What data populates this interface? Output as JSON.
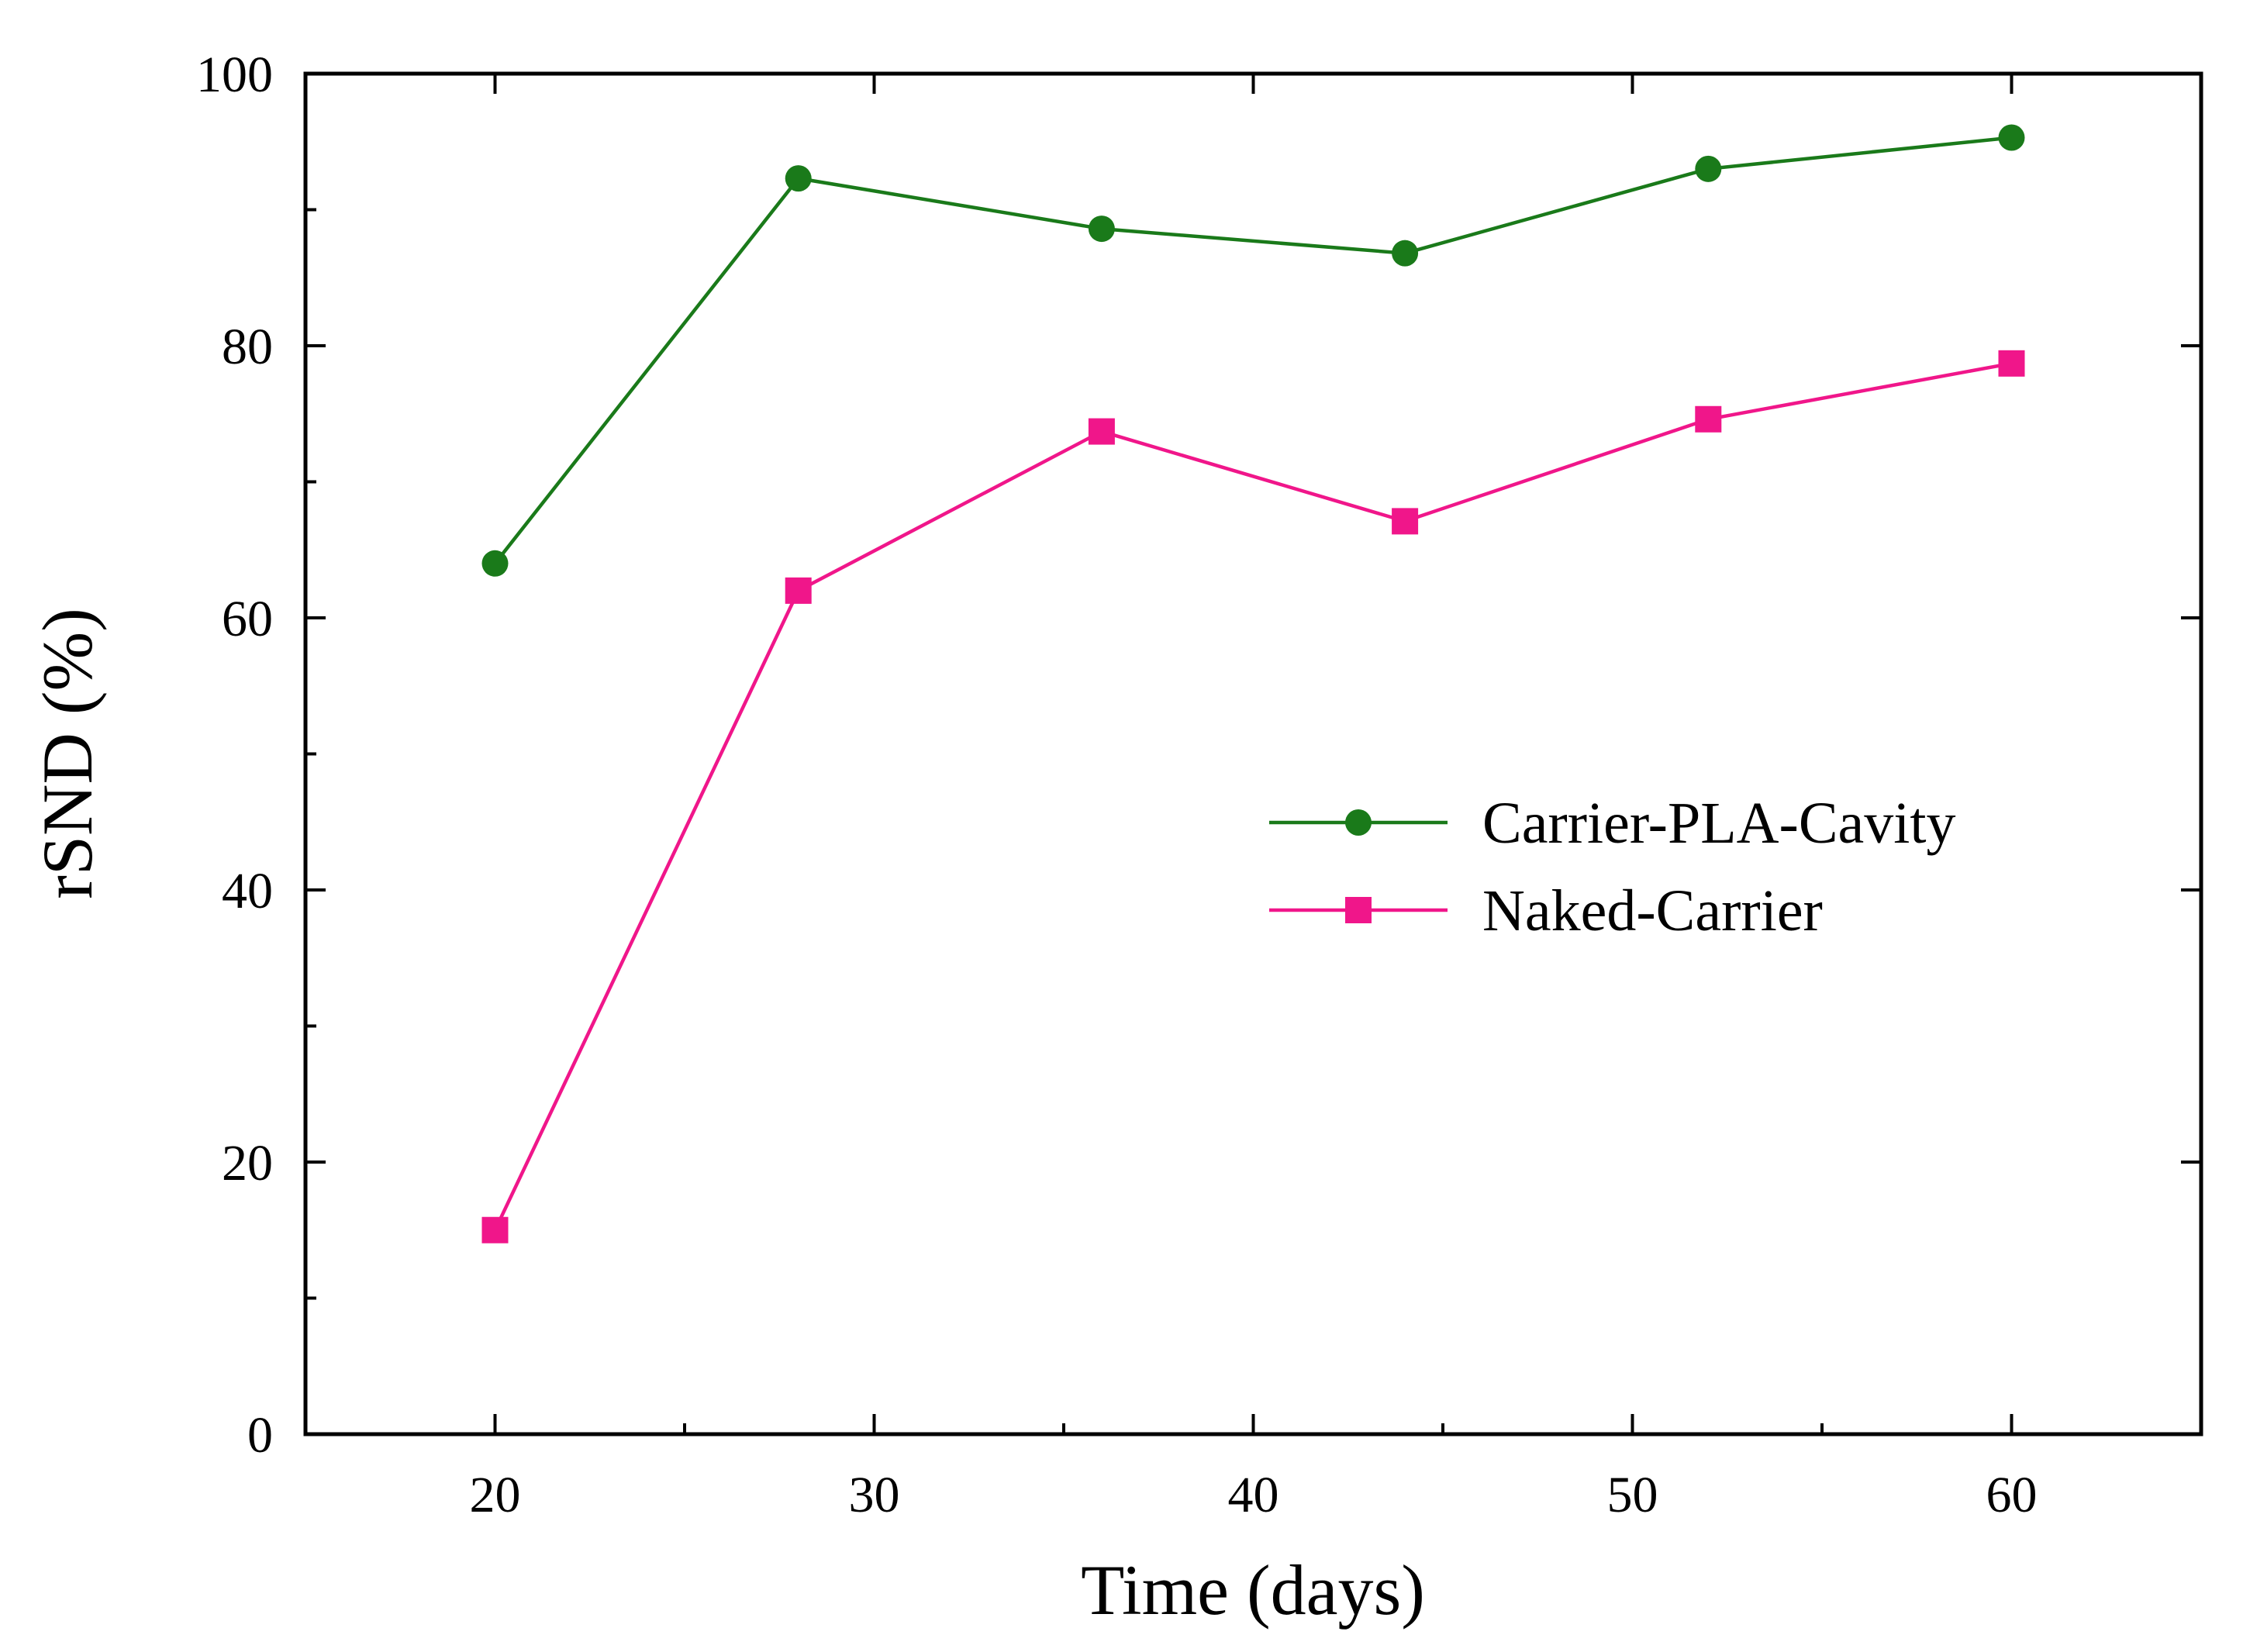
{
  "chart_data": {
    "type": "line",
    "title": "",
    "xlabel": "Time (days)",
    "ylabel": "rSND (%)",
    "xlim": [
      15,
      65
    ],
    "ylim": [
      0,
      100
    ],
    "x_ticks": [
      20,
      30,
      40,
      50,
      60
    ],
    "x_tick_labels": [
      "20",
      "30",
      "40",
      "50",
      "60"
    ],
    "x_minor_ticks": [
      25,
      35,
      45,
      55
    ],
    "y_ticks": [
      0,
      20,
      40,
      60,
      80,
      100
    ],
    "y_tick_labels": [
      "0",
      "20",
      "40",
      "60",
      "80",
      "100"
    ],
    "y_minor_ticks": [
      10,
      30,
      50,
      70,
      90
    ],
    "grid": false,
    "legend_position": "center-right",
    "x": [
      20,
      28,
      36,
      44,
      52,
      60
    ],
    "series": [
      {
        "name": "Carrier-PLA-Cavity",
        "marker": "circle",
        "color": "#1a7a1a",
        "values": [
          64.0,
          92.3,
          88.6,
          86.8,
          93.0,
          95.3
        ]
      },
      {
        "name": "Naked-Carrier",
        "marker": "square",
        "color": "#f0168a",
        "values": [
          15.0,
          62.0,
          73.7,
          67.1,
          74.6,
          78.7
        ]
      }
    ]
  }
}
